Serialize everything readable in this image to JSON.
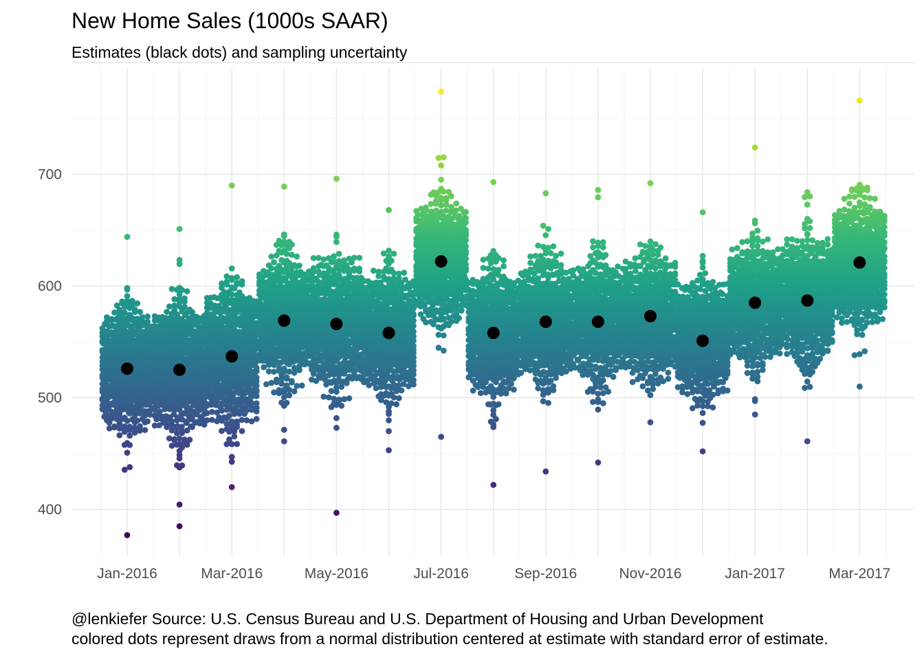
{
  "chart_data": {
    "type": "scatter",
    "title": "New Home Sales (1000s SAAR)",
    "subtitle": "Estimates (black dots) and sampling uncertainty",
    "xlabel": "",
    "ylabel": "",
    "grid": true,
    "ylim": [
      355,
      800
    ],
    "y_ticks": [
      400,
      500,
      600,
      700
    ],
    "x_tick_labels": [
      "Jan-2016",
      "Mar-2016",
      "May-2016",
      "Jul-2016",
      "Sep-2016",
      "Nov-2016",
      "Jan-2017",
      "Mar-2017"
    ],
    "categories": [
      "Jan-2016",
      "Feb-2016",
      "Mar-2016",
      "Apr-2016",
      "May-2016",
      "Jun-2016",
      "Jul-2016",
      "Aug-2016",
      "Sep-2016",
      "Oct-2016",
      "Nov-2016",
      "Dec-2016",
      "Jan-2017",
      "Feb-2017",
      "Mar-2017"
    ],
    "series": [
      {
        "values": [
          526,
          525,
          537,
          569,
          566,
          558,
          622,
          558,
          568,
          568,
          573,
          551,
          585,
          587,
          621
        ],
        "color": "#000000"
      }
    ],
    "uncertainty_draws": {
      "color_scale": "viridis",
      "color_range": [
        375,
        775
      ],
      "std_error": [
        26,
        30,
        30,
        26,
        28,
        26,
        26,
        27,
        26,
        26,
        26,
        25,
        26,
        26,
        27
      ],
      "extremes": [
        {
          "min": 377,
          "max": 644
        },
        {
          "min": 385,
          "max": 651
        },
        {
          "min": 420,
          "max": 690
        },
        {
          "min": 461,
          "max": 689
        },
        {
          "min": 397,
          "max": 696
        },
        {
          "min": 453,
          "max": 668
        },
        {
          "min": 465,
          "max": 774
        },
        {
          "min": 422,
          "max": 693
        },
        {
          "min": 434,
          "max": 683
        },
        {
          "min": 442,
          "max": 686
        },
        {
          "min": 478,
          "max": 692
        },
        {
          "min": 452,
          "max": 666
        },
        {
          "min": 485,
          "max": 724
        },
        {
          "min": 461,
          "max": 684
        },
        {
          "min": 510,
          "max": 766
        }
      ]
    }
  },
  "caption": {
    "line1": "@lenkiefer Source: U.S. Census Bureau and U.S. Department of Housing and Urban Development",
    "line2": "colored dots represent draws from a normal distribution centered at estimate with standard error of estimate."
  }
}
